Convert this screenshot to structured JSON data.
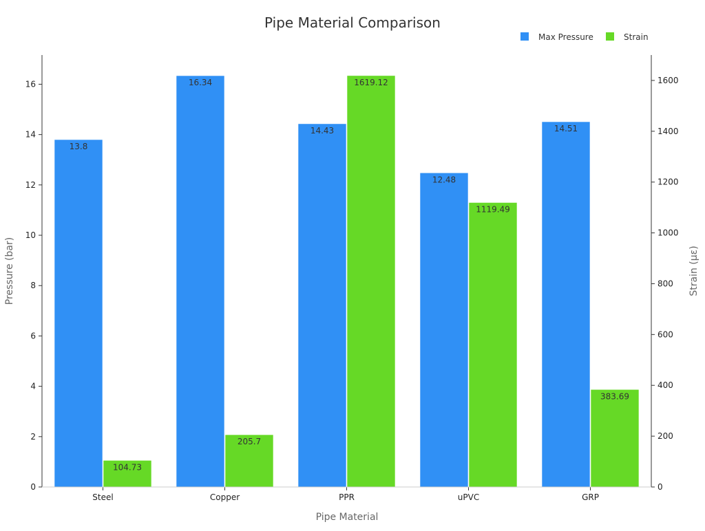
{
  "chart_data": {
    "type": "bar",
    "title": "Pipe Material Comparison",
    "xlabel": "Pipe Material",
    "ylabel": "Pressure (bar)",
    "y2label": "Strain (με)",
    "categories": [
      "Steel",
      "Copper",
      "PPR",
      "uPVC",
      "GRP"
    ],
    "series": [
      {
        "name": "Max Pressure",
        "axis": "left",
        "color": "#3090f5",
        "values": [
          13.8,
          16.34,
          14.43,
          12.48,
          14.51
        ]
      },
      {
        "name": "Strain",
        "axis": "right",
        "color": "#66d926",
        "values": [
          104.73,
          205.7,
          1619.12,
          1119.49,
          383.69
        ]
      }
    ],
    "ylim": [
      0,
      17.16
    ],
    "y2lim": [
      0,
      1700
    ],
    "yticks": [
      0,
      2,
      4,
      6,
      8,
      10,
      12,
      14,
      16
    ],
    "y2ticks": [
      0,
      200,
      400,
      600,
      800,
      1000,
      1200,
      1400,
      1600
    ],
    "grid": false,
    "legend": "top-right"
  }
}
